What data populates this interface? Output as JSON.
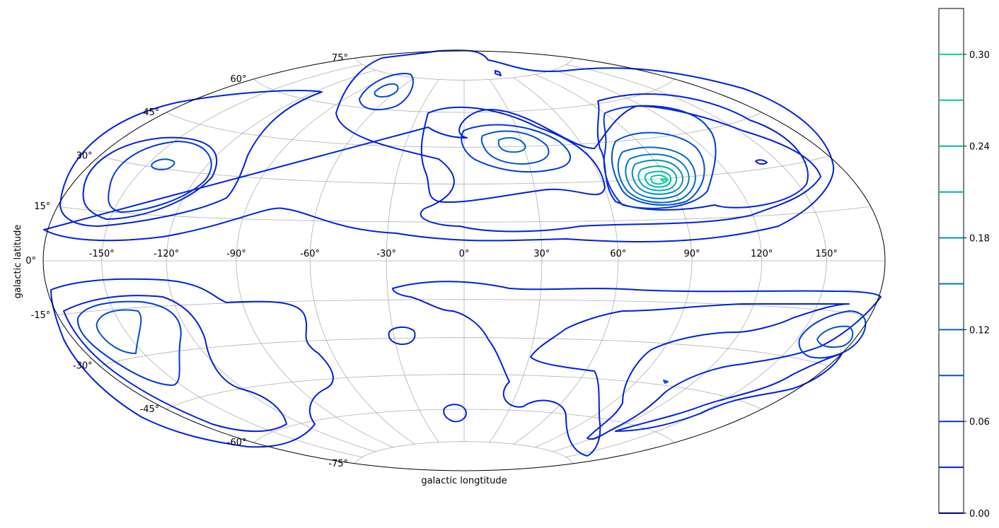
{
  "chart_data": {
    "type": "contour",
    "projection": "hammer",
    "xlabel": "galactic longtitude",
    "ylabel": "galactic latitude",
    "longitude_ticks": [
      "-150°",
      "-120°",
      "-90°",
      "-60°",
      "-30°",
      "0°",
      "30°",
      "60°",
      "90°",
      "120°",
      "150°"
    ],
    "latitude_ticks": [
      "-75°",
      "-60°",
      "-45°",
      "-30°",
      "-15°",
      "0°",
      "15°",
      "30°",
      "45°",
      "60°",
      "75°"
    ],
    "grid": true,
    "colorbar": {
      "ticks": [
        "0.00",
        "0.06",
        "0.12",
        "0.18",
        "0.24",
        "0.30"
      ],
      "levels": [
        0.0,
        0.03,
        0.06,
        0.09,
        0.12,
        0.15,
        0.18,
        0.21,
        0.24,
        0.27,
        0.3
      ],
      "range": [
        0.0,
        0.33
      ],
      "colors": [
        "#00008b",
        "#0020e0",
        "#0038d8",
        "#0050d0",
        "#0066c8",
        "#0078c0",
        "#0090b8",
        "#00a8b0",
        "#00b8a8",
        "#00c8a0",
        "#00d89a"
      ]
    },
    "peaks": [
      {
        "lon": 86,
        "lat": 24,
        "value": 0.3
      },
      {
        "lon": 22,
        "lat": 34,
        "value": 0.15
      },
      {
        "lon": -134,
        "lat": 26,
        "value": 0.09
      },
      {
        "lon": -40,
        "lat": 52,
        "value": 0.09
      },
      {
        "lon": 160,
        "lat": -20,
        "value": 0.09
      },
      {
        "lon": -160,
        "lat": -18,
        "value": 0.09
      },
      {
        "lon": -30,
        "lat": -20,
        "value": 0.06
      },
      {
        "lon": -5,
        "lat": -60,
        "value": 0.06
      }
    ]
  }
}
